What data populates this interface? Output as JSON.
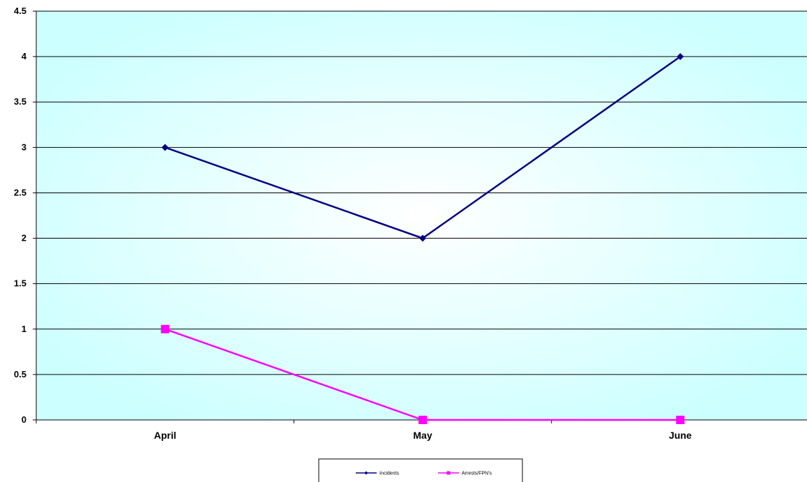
{
  "chart_data": {
    "type": "line",
    "categories": [
      "April",
      "May",
      "June"
    ],
    "ylim": [
      0,
      4.5
    ],
    "ytick_step": 0.5,
    "yticks": [
      "0",
      "0.5",
      "1",
      "1.5",
      "2",
      "2.5",
      "3",
      "3.5",
      "4",
      "4.5"
    ],
    "grid": true,
    "legend_position": "bottom",
    "series": [
      {
        "name": "Incidents",
        "values": [
          3,
          2,
          4
        ],
        "color": "#000080",
        "marker": "diamond"
      },
      {
        "name": "Arrests/FPN's",
        "values": [
          1,
          0,
          0
        ],
        "color": "#FF00FF",
        "marker": "square"
      }
    ],
    "plot_background": [
      "#ffffff",
      "#ccffff"
    ]
  }
}
